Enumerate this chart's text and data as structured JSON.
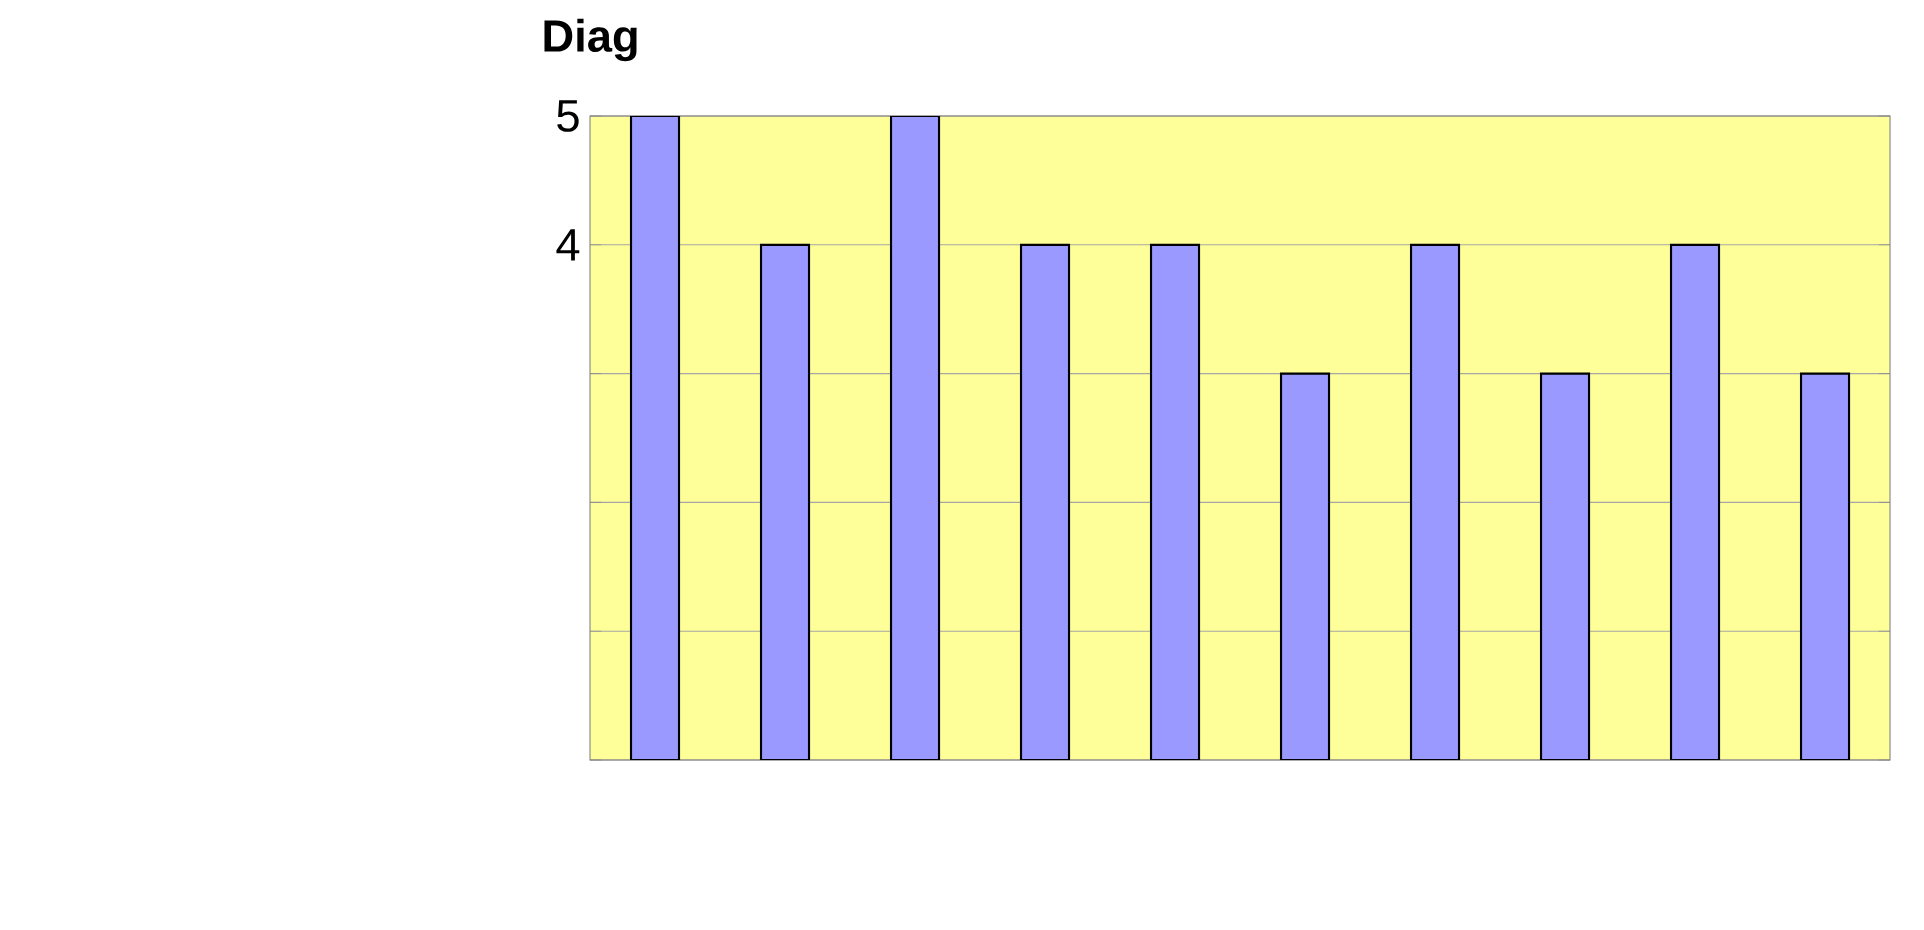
{
  "chart_data": {
    "type": "bar",
    "title": "Diag",
    "categories": [
      null,
      null,
      null,
      null,
      null,
      null,
      null,
      null,
      null,
      null
    ],
    "values": [
      5,
      4,
      5,
      4,
      4,
      3,
      4,
      3,
      4,
      3
    ],
    "color": "#9999ff",
    "ylim": [
      0,
      5
    ],
    "yticks": [
      {
        "value": 0,
        "label": null
      },
      {
        "value": 1,
        "label": null
      },
      {
        "value": 2,
        "label": null
      },
      {
        "value": 3,
        "label": null
      },
      4,
      5
    ],
    "grid": "y"
  }
}
